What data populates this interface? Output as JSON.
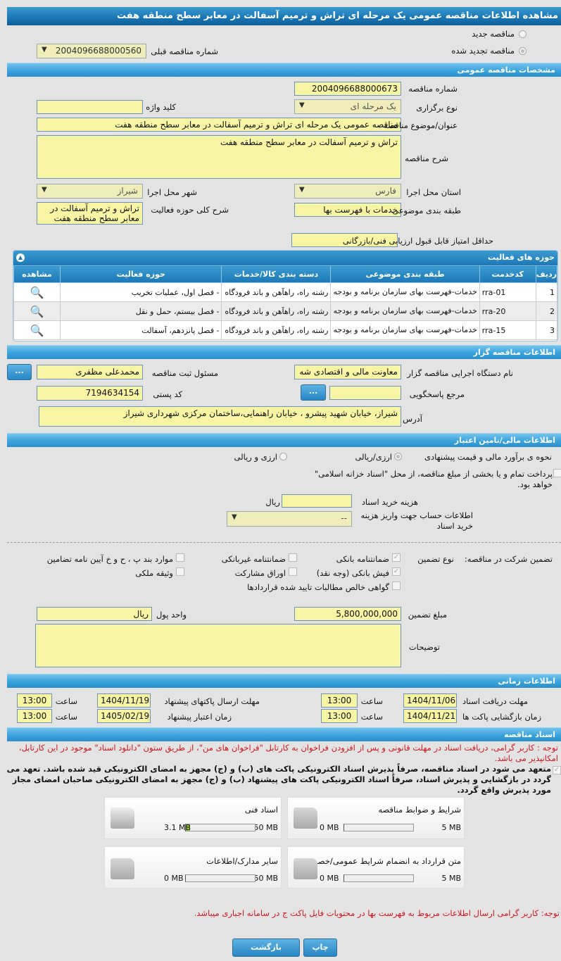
{
  "title": "مشاهده اطلاعات مناقصه عمومی یک مرحله ای تراش و ترمیم آسفالت در معابر سطح منطقه هفت",
  "tender_type": {
    "new_label": "مناقصه جدید",
    "renewed_label": "مناقصه تجدید شده",
    "selected": "renewed",
    "prev_number_label": "شماره مناقصه قبلی",
    "prev_number": "2004096688000560"
  },
  "general": {
    "header": "مشخصات مناقصه عمومی",
    "number_label": "شماره مناقصه",
    "number": "2004096688000673",
    "holding_label": "نوع برگزاری",
    "holding": "یک مرحله ای",
    "keyword_label": "کلید واژه",
    "keyword": "",
    "subject_label": "عنوان/موضوع مناقصه",
    "subject": "مناقصه عمومی یک مرحله ای تراش و ترمیم آسفالت در معابر سطح منطقه هفت",
    "description_label": "شرح مناقصه",
    "description": "تراش و ترمیم آسفالت در معابر سطح منطقه هفت",
    "province_label": "استان محل اجرا",
    "province": "فارس",
    "city_label": "شهر محل اجرا",
    "city": "شیراز",
    "classification_label": "طبقه بندی موضوعی",
    "classification": "خدمات با فهرست بها",
    "activity_desc_label": "شرح کلی حوزه فعالیت",
    "activity_desc": "تراش و ترمیم آسفالت در معابر سطح منطقه هفت",
    "min_score_label": "حداقل امتیاز قابل قبول ارزیابی فنی/بازرگانی",
    "min_score": ""
  },
  "activities": {
    "header": "حوزه های فعالیت",
    "columns": [
      "ردیف",
      "کدخدمت",
      "طبقه بندی موضوعی",
      "دسته بندی کالا/خدمات",
      "حوزه فعالیت",
      "مشاهده"
    ],
    "rows": [
      {
        "row": "1",
        "code": "rra-01",
        "category": "خدمات-فهرست بهای سازمان برنامه و بودجه",
        "group": "رشته راه، راهآهن و باند فرودگاه",
        "field": "- فصل اول، عملیات تخریب"
      },
      {
        "row": "2",
        "code": "rra-20",
        "category": "خدمات-فهرست بهای سازمان برنامه و بودجه",
        "group": "رشته راه، راهآهن و باند فرودگاه",
        "field": "- فصل بیستم، حمل و نقل"
      },
      {
        "row": "3",
        "code": "rra-15",
        "category": "خدمات-فهرست بهای سازمان برنامه و بودجه",
        "group": "رشته راه، راهآهن و باند فرودگاه",
        "field": "- فصل پانزدهم، آسفالت"
      }
    ]
  },
  "organizer": {
    "header": "اطلاعات مناقصه گزار",
    "org_label": "نام دستگاه اجرایی مناقصه گزار",
    "org": "معاونت مالی و اقتصادی شه",
    "responsible_label": "مسئول ثبت مناقصه",
    "responsible": "محمدعلی مظفری",
    "reference_label": "مرجع پاسخگویی",
    "reference": "",
    "postal_label": "کد پستی",
    "postal": "7194634154",
    "address_label": "آدرس",
    "address": "شیراز، خیابان شهید پیشرو ، خیابان راهنمایی،ساختمان مرکزی شهرداری شیراز",
    "more_button": "..."
  },
  "finance": {
    "header": "اطلاعات مالی/تامین اعتبار",
    "estimate_label": "نحوه ی برآورد مالی و قیمت پیشنهادی",
    "opt1": "ارزی/ریالی",
    "opt2": "ارزی و ریالی",
    "treasury_text": "پرداخت تمام و یا بخشی از مبلغ مناقصه، از محل \"اسناد خزانه اسلامی\" خواهد بود.",
    "doc_cost_label": "هزینه خرید اسناد",
    "doc_cost": "",
    "doc_cost_unit": "ریال",
    "account_label": "اطلاعات حساب جهت واریز هزینه خرید اسناد",
    "account": "--",
    "guarantee_label": "تضمین شرکت در مناقصه:",
    "guarantee_type_label": "نوع تضمین",
    "guarantees": [
      {
        "label": "ضمانتنامه بانکی",
        "checked": true
      },
      {
        "label": "ضمانتنامه غیربانکی",
        "checked": false
      },
      {
        "label": "موارد بند پ ، ح و خ آیین نامه تضامین",
        "checked": false
      },
      {
        "label": "فیش بانکی (وجه نقد)",
        "checked": true
      },
      {
        "label": "اوراق مشارکت",
        "checked": false
      },
      {
        "label": "وثیقه ملکی",
        "checked": false
      },
      {
        "label": "گواهی خالص مطالبات تایید شده قراردادها",
        "checked": false
      }
    ],
    "amount_label": "مبلغ تضمین",
    "amount": "5,800,000,000",
    "currency_label": "واحد پول",
    "currency": "ریال",
    "notes_label": "توضیحات",
    "notes": ""
  },
  "timing": {
    "header": "اطلاعات زمانی",
    "time_label": "ساعت",
    "doc_receive_label": "مهلت دریافت اسناد",
    "doc_receive_date": "1404/11/06",
    "doc_receive_time": "13:00",
    "submit_label": "مهلت ارسال پاکتهای پیشنهاد",
    "submit_date": "1404/11/19",
    "submit_time": "13:00",
    "opening_label": "زمان بازگشایی پاکت ها",
    "opening_date": "1404/11/21",
    "opening_time": "13:00",
    "validity_label": "زمان اعتبار پیشنهاد",
    "validity_date": "1405/02/19",
    "validity_time": "13:00"
  },
  "documents": {
    "header": "اسناد مناقصه",
    "notice": "توجه : کاربر گرامی، دریافت اسناد در مهلت قانونی و پس از افزودن فراخوان به کارتابل \"فراخوان های من\"، از طریق ستون \"دانلود اسناد\" موجود در این کارتابل، امکانپذیر می باشد.",
    "commitment": "متعهد می شود در اسناد مناقصه، صرفاً پذیرش اسناد الکترونیکی پاکت های (ب) و (ج) مجهز به امضای الکترونیکی قید شده باشد. تعهد می گردد در بازگشایی و پذیرش اسناد، صرفاً اسناد الکترونیکی پاکت های پیشنهاد (ب) و (ج) مجهز به امضای الکترونیکی صاحبان امضای مجاز مورد پذیرش واقع گردد.",
    "items": [
      {
        "name": "شرایط و ضوابط مناقصه",
        "used": "0 MB",
        "max": "5 MB",
        "fraction": 0
      },
      {
        "name": "اسناد فنی",
        "used": "3.1 MB",
        "max": "50 MB",
        "fraction": 0.062
      },
      {
        "name": "متن قرارداد به انضمام شرایط عمومی/خصوصی",
        "used": "0 MB",
        "max": "5 MB",
        "fraction": 0
      },
      {
        "name": "سایر مدارک/اطلاعات",
        "used": "0 MB",
        "max": "50 MB",
        "fraction": 0
      }
    ],
    "footer_note": "توجه: کاربر گرامی ارسال اطلاعات مربوط به فهرست بها در محتویات فایل پاکت ج در سامانه اجباری میباشد."
  },
  "buttons": {
    "print": "چاپ",
    "back": "بازگشت"
  },
  "colors": {
    "accent": "#2787c4",
    "input": "#f7f5a3",
    "warning": "#d0141a",
    "progress": "#9acd32"
  }
}
